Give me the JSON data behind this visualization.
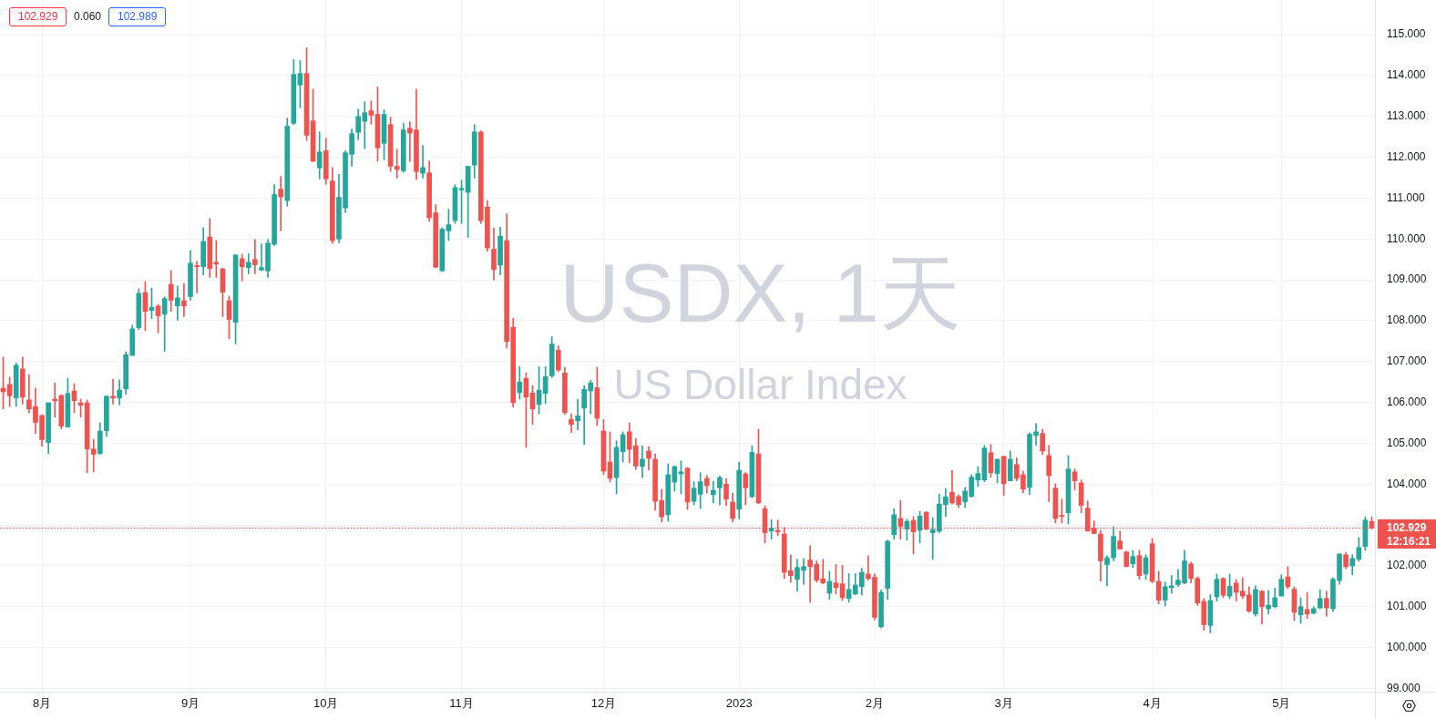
{
  "chart_data": {
    "type": "candlestick",
    "title": "USDX, 1天",
    "subtitle": "US Dollar Index",
    "categories": [
      null,
      null,
      null,
      null,
      null,
      null,
      "8月",
      null,
      null,
      null,
      null,
      null,
      null,
      null,
      null,
      null,
      null,
      null,
      null,
      null,
      null,
      null,
      null,
      null,
      null,
      null,
      null,
      null,
      null,
      "9月",
      null,
      null,
      null,
      null,
      null,
      null,
      null,
      null,
      null,
      null,
      null,
      null,
      null,
      null,
      null,
      null,
      null,
      null,
      null,
      null,
      "10月",
      null,
      null,
      null,
      null,
      null,
      null,
      null,
      null,
      null,
      null,
      null,
      null,
      null,
      null,
      null,
      null,
      null,
      null,
      null,
      null,
      "11月",
      null,
      null,
      null,
      null,
      null,
      null,
      null,
      null,
      null,
      null,
      null,
      null,
      null,
      null,
      null,
      null,
      null,
      null,
      null,
      null,
      null,
      "12月",
      null,
      null,
      null,
      null,
      null,
      null,
      null,
      null,
      null,
      null,
      null,
      null,
      null,
      null,
      null,
      null,
      null,
      null,
      null,
      null,
      "2023",
      null,
      null,
      null,
      null,
      null,
      null,
      null,
      null,
      null,
      null,
      null,
      null,
      null,
      null,
      null,
      null,
      null,
      null,
      null,
      null,
      "2月",
      null,
      null,
      null,
      null,
      null,
      null,
      null,
      null,
      null,
      null,
      null,
      null,
      null,
      null,
      null,
      null,
      null,
      null,
      null,
      "3月",
      null,
      null,
      null,
      null,
      null,
      null,
      null,
      null,
      null,
      null,
      null,
      null,
      null,
      null,
      null,
      null,
      null,
      null,
      null,
      null,
      null,
      null,
      "4月",
      null,
      null,
      null,
      null,
      null,
      null,
      null,
      null,
      null,
      null,
      null,
      null,
      null,
      null,
      null,
      null,
      null,
      null,
      null,
      "5月",
      null,
      null,
      null,
      null,
      null,
      null,
      null,
      null,
      null,
      null,
      null,
      null,
      null,
      null
    ],
    "ohlc": [
      [
        106.35,
        107.11,
        105.84,
        106.26
      ],
      [
        106.44,
        106.62,
        105.9,
        106.16
      ],
      [
        106.11,
        106.97,
        105.9,
        106.91
      ],
      [
        106.82,
        107.11,
        105.96,
        106.13
      ],
      [
        106.06,
        106.68,
        105.75,
        105.84
      ],
      [
        105.9,
        106.35,
        105.24,
        105.51
      ],
      [
        105.68,
        105.7,
        104.93,
        105.09
      ],
      [
        105.02,
        105.99,
        104.75,
        105.99
      ],
      [
        106.08,
        106.48,
        105.64,
        106.04
      ],
      [
        106.17,
        106.19,
        105.35,
        105.42
      ],
      [
        105.4,
        106.59,
        105.4,
        106.22
      ],
      [
        106.28,
        106.46,
        105.75,
        106.04
      ],
      [
        105.99,
        106.08,
        105.64,
        105.93
      ],
      [
        105.99,
        106.06,
        104.28,
        104.86
      ],
      [
        104.86,
        105.1,
        104.3,
        104.73
      ],
      [
        104.75,
        105.5,
        104.73,
        105.3
      ],
      [
        105.31,
        106.17,
        105.17,
        106.15
      ],
      [
        106.15,
        106.57,
        105.96,
        106.11
      ],
      [
        106.11,
        106.55,
        105.94,
        106.3
      ],
      [
        106.33,
        107.24,
        106.2,
        107.17
      ],
      [
        107.15,
        107.89,
        107.15,
        107.8
      ],
      [
        107.83,
        108.78,
        107.78,
        108.67
      ],
      [
        108.69,
        108.96,
        107.76,
        108.23
      ],
      [
        108.25,
        108.8,
        108.05,
        108.33
      ],
      [
        108.36,
        108.4,
        107.7,
        108.12
      ],
      [
        108.16,
        108.58,
        107.25,
        108.54
      ],
      [
        108.89,
        109.23,
        108.23,
        108.5
      ],
      [
        108.36,
        108.85,
        108.01,
        108.56
      ],
      [
        108.49,
        108.91,
        108.1,
        108.36
      ],
      [
        108.59,
        109.72,
        108.5,
        109.41
      ],
      [
        109.35,
        109.45,
        108.68,
        109.32
      ],
      [
        109.32,
        110.28,
        109.12,
        109.94
      ],
      [
        110.05,
        110.5,
        109.06,
        109.28
      ],
      [
        109.43,
        109.96,
        109.06,
        109.39
      ],
      [
        109.27,
        109.29,
        108.1,
        108.7
      ],
      [
        108.49,
        108.6,
        107.56,
        108.03
      ],
      [
        107.96,
        109.61,
        107.43,
        109.61
      ],
      [
        109.52,
        109.63,
        108.97,
        109.32
      ],
      [
        109.3,
        109.64,
        109.15,
        109.43
      ],
      [
        109.5,
        109.99,
        109.15,
        109.37
      ],
      [
        109.24,
        109.88,
        109.22,
        109.3
      ],
      [
        109.22,
        109.99,
        109.06,
        109.9
      ],
      [
        109.87,
        111.33,
        109.84,
        111.09
      ],
      [
        111.22,
        111.53,
        110.2,
        111.03
      ],
      [
        110.94,
        112.96,
        110.8,
        112.76
      ],
      [
        112.83,
        114.39,
        112.8,
        114.03
      ],
      [
        113.77,
        114.37,
        113.21,
        114.05
      ],
      [
        114.05,
        114.68,
        112.41,
        112.54
      ],
      [
        112.89,
        113.67,
        111.9,
        111.9
      ],
      [
        111.74,
        112.62,
        111.47,
        112.13
      ],
      [
        112.16,
        112.47,
        111.34,
        111.47
      ],
      [
        111.42,
        111.75,
        109.89,
        109.96
      ],
      [
        110.0,
        111.58,
        109.91,
        111.02
      ],
      [
        110.76,
        112.16,
        110.65,
        112.11
      ],
      [
        112.07,
        112.69,
        111.78,
        112.58
      ],
      [
        112.61,
        113.18,
        112.43,
        113.0
      ],
      [
        112.88,
        113.36,
        112.21,
        113.09
      ],
      [
        113.14,
        113.38,
        112.81,
        113.03
      ],
      [
        113.05,
        113.72,
        111.9,
        112.23
      ],
      [
        112.34,
        113.16,
        111.94,
        113.05
      ],
      [
        112.8,
        112.98,
        111.65,
        111.78
      ],
      [
        111.78,
        112.2,
        111.49,
        111.7
      ],
      [
        111.67,
        112.83,
        111.63,
        112.67
      ],
      [
        112.71,
        112.87,
        111.9,
        112.59
      ],
      [
        112.67,
        113.67,
        111.45,
        111.65
      ],
      [
        111.61,
        112.29,
        111.49,
        111.75
      ],
      [
        111.62,
        111.91,
        110.43,
        110.52
      ],
      [
        110.64,
        110.84,
        109.29,
        109.31
      ],
      [
        109.22,
        110.28,
        109.2,
        110.24
      ],
      [
        110.2,
        110.73,
        109.96,
        110.35
      ],
      [
        110.45,
        111.33,
        110.38,
        111.26
      ],
      [
        111.2,
        111.44,
        110.38,
        111.24
      ],
      [
        111.14,
        111.78,
        110.04,
        111.78
      ],
      [
        111.81,
        112.8,
        111.49,
        112.62
      ],
      [
        112.62,
        112.65,
        110.38,
        110.45
      ],
      [
        110.78,
        110.94,
        109.7,
        109.78
      ],
      [
        109.75,
        110.27,
        109.0,
        109.25
      ],
      [
        109.36,
        110.29,
        109.12,
        110.07
      ],
      [
        109.96,
        110.62,
        107.33,
        107.49
      ],
      [
        107.84,
        108.06,
        105.88,
        105.99
      ],
      [
        106.24,
        106.88,
        106.08,
        106.5
      ],
      [
        106.59,
        106.72,
        104.9,
        106.13
      ],
      [
        106.23,
        106.41,
        105.46,
        105.84
      ],
      [
        105.95,
        106.88,
        105.72,
        106.3
      ],
      [
        106.22,
        106.88,
        105.97,
        106.63
      ],
      [
        106.65,
        107.61,
        106.61,
        107.43
      ],
      [
        107.28,
        107.39,
        106.75,
        106.79
      ],
      [
        106.72,
        106.86,
        105.71,
        105.75
      ],
      [
        105.58,
        105.72,
        105.26,
        105.46
      ],
      [
        105.55,
        106.08,
        105.33,
        105.67
      ],
      [
        105.86,
        106.41,
        104.97,
        106.32
      ],
      [
        106.28,
        106.54,
        105.72,
        106.48
      ],
      [
        106.36,
        106.86,
        105.43,
        105.61
      ],
      [
        105.3,
        105.58,
        104.24,
        104.32
      ],
      [
        104.54,
        105.28,
        104.05,
        104.14
      ],
      [
        104.16,
        105.06,
        103.76,
        104.9
      ],
      [
        104.79,
        105.28,
        104.54,
        105.21
      ],
      [
        105.28,
        105.5,
        104.52,
        104.85
      ],
      [
        104.94,
        105.12,
        104.36,
        104.44
      ],
      [
        104.43,
        104.94,
        104.16,
        104.61
      ],
      [
        104.81,
        104.92,
        104.34,
        104.63
      ],
      [
        104.61,
        104.74,
        103.36,
        103.58
      ],
      [
        103.6,
        103.87,
        103.07,
        103.2
      ],
      [
        103.25,
        104.5,
        103.09,
        104.23
      ],
      [
        104.05,
        104.45,
        103.83,
        104.43
      ],
      [
        104.25,
        104.57,
        103.76,
        104.3
      ],
      [
        104.39,
        104.41,
        103.38,
        103.56
      ],
      [
        103.58,
        104.06,
        103.49,
        103.9
      ],
      [
        103.75,
        104.28,
        103.4,
        104.06
      ],
      [
        104.14,
        104.21,
        103.78,
        103.96
      ],
      [
        103.74,
        104.07,
        103.54,
        103.85
      ],
      [
        103.91,
        104.2,
        103.49,
        104.16
      ],
      [
        104.0,
        104.14,
        103.47,
        103.63
      ],
      [
        103.56,
        103.78,
        103.07,
        103.16
      ],
      [
        103.39,
        104.54,
        103.15,
        104.34
      ],
      [
        104.25,
        104.29,
        103.49,
        103.91
      ],
      [
        103.69,
        104.94,
        103.67,
        104.78
      ],
      [
        104.74,
        105.34,
        103.52,
        103.54
      ],
      [
        103.4,
        103.47,
        102.56,
        102.81
      ],
      [
        102.85,
        103.13,
        102.65,
        102.92
      ],
      [
        102.87,
        103.12,
        102.74,
        102.83
      ],
      [
        102.78,
        102.94,
        101.69,
        101.84
      ],
      [
        101.88,
        102.27,
        101.6,
        101.76
      ],
      [
        101.67,
        102.16,
        101.38,
        101.96
      ],
      [
        101.89,
        102.18,
        101.54,
        101.98
      ],
      [
        102.14,
        102.49,
        101.11,
        101.98
      ],
      [
        102.04,
        102.12,
        101.6,
        101.65
      ],
      [
        101.68,
        102.16,
        101.56,
        101.58
      ],
      [
        101.33,
        101.87,
        101.18,
        101.62
      ],
      [
        101.58,
        102.03,
        101.31,
        101.47
      ],
      [
        101.56,
        102.01,
        101.15,
        101.22
      ],
      [
        101.2,
        101.81,
        101.11,
        101.42
      ],
      [
        101.31,
        101.81,
        101.29,
        101.53
      ],
      [
        101.49,
        101.94,
        101.28,
        101.84
      ],
      [
        101.8,
        102.25,
        101.65,
        101.69
      ],
      [
        101.72,
        101.8,
        100.68,
        100.74
      ],
      [
        100.51,
        101.41,
        100.48,
        101.35
      ],
      [
        101.45,
        102.63,
        101.18,
        102.6
      ],
      [
        102.76,
        103.4,
        102.65,
        103.25
      ],
      [
        103.16,
        103.6,
        102.65,
        102.96
      ],
      [
        102.9,
        103.14,
        102.63,
        103.09
      ],
      [
        103.11,
        103.2,
        102.29,
        102.83
      ],
      [
        102.87,
        103.33,
        102.56,
        103.22
      ],
      [
        103.31,
        103.33,
        102.88,
        102.9
      ],
      [
        102.81,
        103.18,
        102.16,
        102.89
      ],
      [
        102.85,
        103.76,
        102.81,
        103.51
      ],
      [
        103.5,
        103.89,
        103.21,
        103.69
      ],
      [
        103.8,
        104.34,
        103.51,
        103.54
      ],
      [
        103.7,
        103.74,
        103.43,
        103.5
      ],
      [
        103.57,
        103.92,
        103.43,
        103.83
      ],
      [
        103.7,
        104.23,
        103.68,
        104.17
      ],
      [
        104.1,
        104.43,
        103.94,
        104.26
      ],
      [
        104.1,
        104.95,
        104.06,
        104.88
      ],
      [
        104.77,
        104.97,
        104.17,
        104.28
      ],
      [
        104.26,
        104.61,
        104.03,
        104.61
      ],
      [
        104.68,
        104.68,
        103.72,
        104.01
      ],
      [
        104.08,
        104.81,
        104.08,
        104.61
      ],
      [
        104.48,
        104.64,
        104.08,
        104.14
      ],
      [
        104.23,
        104.32,
        103.79,
        103.88
      ],
      [
        103.92,
        105.26,
        103.74,
        105.22
      ],
      [
        105.19,
        105.48,
        104.95,
        105.28
      ],
      [
        105.24,
        105.35,
        104.72,
        104.81
      ],
      [
        104.7,
        104.95,
        103.57,
        104.21
      ],
      [
        103.9,
        104.01,
        103.05,
        103.16
      ],
      [
        103.23,
        103.63,
        103.05,
        103.21
      ],
      [
        103.3,
        104.7,
        103.03,
        104.37
      ],
      [
        104.3,
        104.37,
        103.86,
        104.08
      ],
      [
        104.03,
        104.1,
        103.3,
        103.48
      ],
      [
        103.41,
        103.59,
        102.85,
        102.85
      ],
      [
        102.92,
        103.1,
        102.79,
        102.79
      ],
      [
        102.78,
        102.87,
        101.62,
        102.12
      ],
      [
        102.03,
        102.25,
        101.51,
        102.2
      ],
      [
        102.2,
        102.96,
        102.12,
        102.72
      ],
      [
        102.61,
        102.85,
        102.41,
        102.41
      ],
      [
        102.34,
        102.36,
        101.98,
        101.98
      ],
      [
        102.05,
        102.38,
        101.96,
        102.23
      ],
      [
        102.25,
        102.38,
        101.67,
        101.76
      ],
      [
        101.8,
        102.27,
        101.67,
        102.2
      ],
      [
        102.54,
        102.67,
        101.58,
        101.62
      ],
      [
        101.62,
        101.87,
        101.07,
        101.16
      ],
      [
        101.16,
        101.6,
        101.02,
        101.49
      ],
      [
        101.47,
        101.76,
        101.33,
        101.51
      ],
      [
        101.54,
        101.91,
        101.49,
        101.65
      ],
      [
        101.58,
        102.38,
        101.56,
        102.12
      ],
      [
        102.05,
        102.09,
        101.58,
        101.69
      ],
      [
        101.69,
        101.73,
        101.03,
        101.09
      ],
      [
        101.13,
        101.2,
        100.42,
        100.56
      ],
      [
        100.54,
        101.3,
        100.36,
        101.15
      ],
      [
        101.24,
        101.8,
        101.13,
        101.67
      ],
      [
        101.69,
        101.71,
        101.22,
        101.28
      ],
      [
        101.26,
        101.8,
        101.2,
        101.5
      ],
      [
        101.58,
        101.67,
        101.14,
        101.35
      ],
      [
        101.38,
        101.71,
        101.2,
        101.26
      ],
      [
        101.29,
        101.49,
        100.86,
        100.89
      ],
      [
        100.82,
        101.51,
        100.77,
        101.42
      ],
      [
        101.38,
        101.4,
        100.57,
        101.0
      ],
      [
        100.95,
        101.4,
        100.82,
        101.04
      ],
      [
        101.0,
        101.46,
        100.97,
        101.22
      ],
      [
        101.26,
        101.78,
        101.26,
        101.67
      ],
      [
        101.73,
        101.98,
        101.44,
        101.49
      ],
      [
        101.43,
        101.49,
        100.66,
        100.86
      ],
      [
        100.8,
        101.22,
        100.59,
        101.0
      ],
      [
        100.93,
        101.35,
        100.71,
        100.82
      ],
      [
        100.84,
        101.0,
        100.82,
        100.95
      ],
      [
        100.97,
        101.42,
        100.95,
        101.2
      ],
      [
        101.2,
        101.38,
        100.77,
        100.97
      ],
      [
        100.95,
        101.71,
        100.88,
        101.67
      ],
      [
        101.64,
        102.29,
        101.55,
        102.29
      ],
      [
        102.27,
        102.33,
        101.93,
        101.98
      ],
      [
        102.0,
        102.27,
        101.78,
        102.18
      ],
      [
        102.16,
        102.69,
        102.11,
        102.45
      ],
      [
        102.47,
        103.2,
        102.38,
        103.12
      ],
      [
        103.09,
        103.2,
        102.9,
        102.929
      ]
    ],
    "colors": [
      "#ef5350",
      "#ef5350",
      "#26a69a",
      "#ef5350",
      "#ef5350",
      "#ef5350",
      "#ef5350",
      "#26a69a",
      "#ef5350",
      "#ef5350",
      "#26a69a",
      "#ef5350",
      "#ef5350",
      "#ef5350",
      "#ef5350",
      "#26a69a",
      "#26a69a",
      "#ef5350",
      "#26a69a",
      "#26a69a",
      "#26a69a",
      "#26a69a",
      "#ef5350",
      "#26a69a",
      "#ef5350",
      "#26a69a",
      "#ef5350",
      "#26a69a",
      "#ef5350",
      "#26a69a",
      "#ef5350",
      "#26a69a",
      "#ef5350",
      "#ef5350",
      "#ef5350",
      "#ef5350",
      "#26a69a",
      "#ef5350",
      "#26a69a",
      "#ef5350",
      "#26a69a",
      "#26a69a",
      "#26a69a",
      "#ef5350",
      "#26a69a",
      "#26a69a",
      "#26a69a",
      "#ef5350",
      "#ef5350",
      "#26a69a",
      "#ef5350",
      "#ef5350",
      "#26a69a",
      "#26a69a",
      "#26a69a",
      "#26a69a",
      "#26a69a",
      "#ef5350",
      "#ef5350",
      "#26a69a",
      "#ef5350",
      "#ef5350",
      "#26a69a",
      "#ef5350",
      "#ef5350",
      "#26a69a",
      "#ef5350",
      "#ef5350",
      "#26a69a",
      "#26a69a",
      "#26a69a",
      "#26a69a",
      "#26a69a",
      "#26a69a",
      "#ef5350",
      "#ef5350",
      "#ef5350",
      "#26a69a",
      "#ef5350",
      "#ef5350",
      "#26a69a",
      "#ef5350",
      "#ef5350",
      "#26a69a",
      "#26a69a",
      "#26a69a",
      "#ef5350",
      "#ef5350",
      "#ef5350",
      "#26a69a",
      "#26a69a",
      "#26a69a",
      "#ef5350",
      "#ef5350",
      "#ef5350",
      "#26a69a",
      "#26a69a",
      "#ef5350",
      "#ef5350",
      "#26a69a",
      "#ef5350",
      "#ef5350",
      "#ef5350",
      "#26a69a",
      "#26a69a",
      "#26a69a",
      "#ef5350",
      "#26a69a",
      "#26a69a",
      "#ef5350",
      "#26a69a",
      "#26a69a",
      "#ef5350",
      "#ef5350",
      "#26a69a",
      "#ef5350",
      "#26a69a",
      "#ef5350",
      "#ef5350",
      "#26a69a",
      "#ef5350",
      "#ef5350",
      "#ef5350",
      "#26a69a",
      "#26a69a",
      "#ef5350",
      "#ef5350",
      "#ef5350",
      "#26a69a",
      "#ef5350",
      "#ef5350",
      "#26a69a",
      "#26a69a",
      "#26a69a",
      "#ef5350",
      "#ef5350",
      "#26a69a",
      "#26a69a",
      "#26a69a",
      "#ef5350",
      "#26a69a",
      "#ef5350",
      "#26a69a",
      "#ef5350",
      "#26a69a",
      "#26a69a",
      "#26a69a",
      "#ef5350",
      "#ef5350",
      "#26a69a",
      "#26a69a",
      "#26a69a",
      "#26a69a",
      "#ef5350",
      "#26a69a",
      "#ef5350",
      "#26a69a",
      "#ef5350",
      "#ef5350",
      "#26a69a",
      "#26a69a",
      "#ef5350",
      "#ef5350",
      "#ef5350",
      "#ef5350",
      "#26a69a",
      "#ef5350",
      "#ef5350",
      "#ef5350",
      "#ef5350",
      "#ef5350",
      "#26a69a",
      "#26a69a",
      "#ef5350",
      "#ef5350",
      "#26a69a",
      "#ef5350",
      "#26a69a",
      "#ef5350",
      "#ef5350",
      "#26a69a",
      "#26a69a",
      "#26a69a",
      "#26a69a",
      "#ef5350",
      "#ef5350",
      "#ef5350",
      "#26a69a",
      "#26a69a",
      "#ef5350",
      "#26a69a",
      "#ef5350",
      "#ef5350",
      "#ef5350",
      "#26a69a",
      "#ef5350",
      "#26a69a",
      "#26a69a",
      "#26a69a",
      "#ef5350",
      "#ef5350",
      "#26a69a",
      "#ef5350",
      "#26a69a",
      "#26a69a",
      "#ef5350",
      "#26a69a",
      "#26a69a",
      "#ef5350",
      "#26a69a",
      "#26a69a",
      "#26a69a",
      "#ef5350"
    ],
    "ylim": [
      98.92,
      115.85
    ],
    "yticks": [
      {
        "value": 99,
        "label": "99.000"
      },
      {
        "value": 100,
        "label": "100.000"
      },
      {
        "value": 101,
        "label": "101.000"
      },
      {
        "value": 102,
        "label": "102.000"
      },
      {
        "value": 103,
        "label": null
      },
      {
        "value": 104,
        "label": "104.000"
      },
      {
        "value": 105,
        "label": "105.000"
      },
      {
        "value": 106,
        "label": "106.000"
      },
      {
        "value": 107,
        "label": "107.000"
      },
      {
        "value": 108,
        "label": "108.000"
      },
      {
        "value": 109,
        "label": "109.000"
      },
      {
        "value": 110,
        "label": "110.000"
      },
      {
        "value": 111,
        "label": "111.000"
      },
      {
        "value": 112,
        "label": "112.000"
      },
      {
        "value": 113,
        "label": "113.000"
      },
      {
        "value": 114,
        "label": "114.000"
      },
      {
        "value": 115,
        "label": "115.000"
      }
    ],
    "grid": true,
    "ref_lines": [
      {
        "axis": "y",
        "value": 102.929,
        "label": "102.929",
        "color": "#ef5350",
        "line_style": "dotted"
      }
    ],
    "annotations": [
      "102.929",
      "0.060",
      "102.989",
      "12:16:21"
    ]
  }
}
